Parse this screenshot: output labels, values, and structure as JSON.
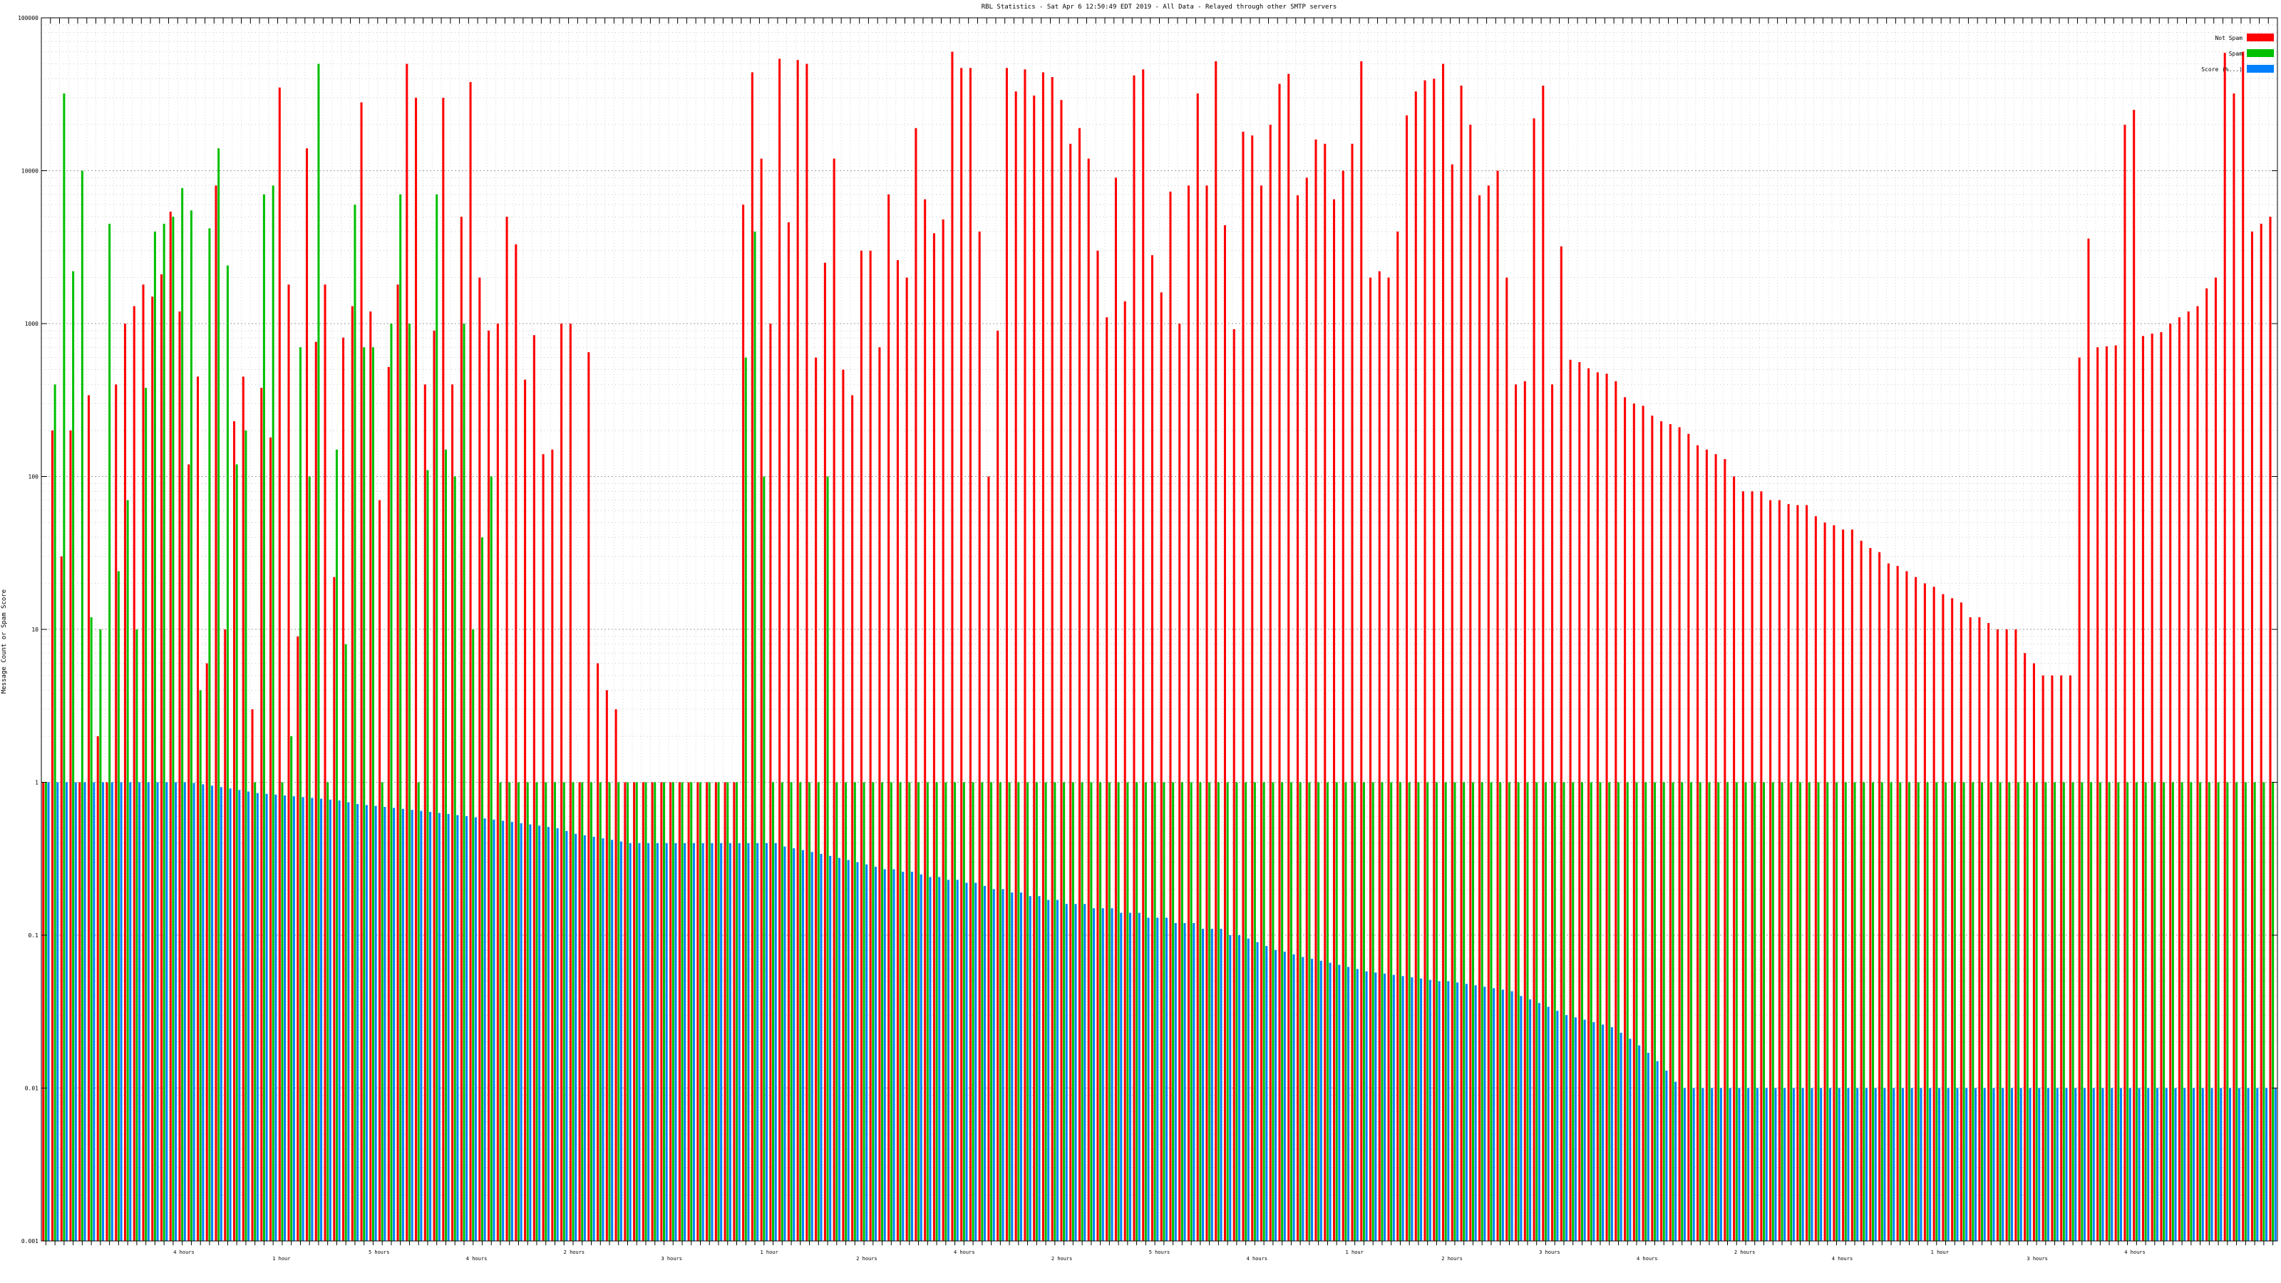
{
  "chart_data": {
    "type": "bar",
    "title": "RBL Statistics - Sat Apr  6 12:50:49 EDT 2019 - All Data - Relayed through other SMTP servers",
    "xlabel": "",
    "ylabel": "Message Count or Spam Score",
    "y_scale": "log",
    "ylim": [
      0.001,
      100000
    ],
    "y_ticks": [
      0.001,
      0.01,
      0.1,
      1,
      10,
      100,
      1000,
      10000,
      100000
    ],
    "y_tick_labels": [
      "0.001",
      "0.01",
      "0.1",
      "1",
      "10",
      "100",
      "1000",
      "10000",
      "100000"
    ],
    "grid": true,
    "legend_position": "top-right",
    "time_labels": [
      "4 hours",
      "1 hour",
      "5 hours",
      "4 hours",
      "2 hours",
      "3 hours",
      "1 hour",
      "2 hours",
      "4 hours",
      "2 hours",
      "5 hours",
      "4 hours",
      "1 hour",
      "2 hours",
      "3 hours",
      "4 hours",
      "2 hours",
      "4 hours",
      "1 hour",
      "3 hours",
      "4 hours"
    ],
    "series": [
      {
        "name": "Not Spam",
        "color": "#ff0000",
        "values": [
          1,
          200,
          30,
          200,
          1,
          340,
          2,
          1,
          400,
          1000,
          1300,
          1800,
          1500,
          2100,
          5400,
          1200,
          120,
          450,
          6,
          8000,
          10,
          230,
          450,
          3,
          380,
          180,
          35000,
          1800,
          9,
          14000,
          760,
          1800,
          22,
          810,
          1300,
          28000,
          1200,
          70,
          520,
          1800,
          50000,
          30000,
          400,
          900,
          30000,
          400,
          5000,
          38000,
          2000,
          900,
          1000,
          5000,
          3300,
          430,
          840,
          140,
          150,
          1000,
          1000,
          1,
          650,
          6,
          4,
          3,
          1,
          1,
          1,
          1,
          1,
          1,
          1,
          1,
          1,
          1,
          1,
          1,
          1,
          6000,
          44000,
          12000,
          1000,
          54000,
          4600,
          53000,
          50000,
          600,
          2500,
          12000,
          500,
          340,
          3000,
          3000,
          700,
          7000,
          2600,
          2000,
          19000,
          6500,
          3900,
          4800,
          60000,
          47000,
          47000,
          4000,
          100,
          900,
          47000,
          33000,
          46000,
          31000,
          44000,
          41000,
          29000,
          15000,
          19000,
          12000,
          3000,
          1100,
          9000,
          1400,
          42000,
          46000,
          2800,
          1600,
          7300,
          1000,
          8000,
          32000,
          8000,
          52000,
          4400,
          920,
          18000,
          17000,
          8000,
          20000,
          37000,
          43000,
          6900,
          9000,
          16000,
          15000,
          6500,
          10000,
          15000,
          52000,
          2000,
          2200,
          2000,
          4000,
          23000,
          33000,
          39000,
          40000,
          50000,
          11000,
          36000,
          20000,
          6900,
          8000,
          10000,
          2000,
          400,
          420,
          22000,
          36000,
          400,
          3200,
          580,
          560,
          510,
          480,
          470,
          420,
          330,
          300,
          290,
          250,
          230,
          220,
          210,
          190,
          160,
          150,
          140,
          130,
          100,
          80,
          80,
          80,
          70,
          70,
          66,
          65,
          65,
          55,
          50,
          48,
          45,
          45,
          38,
          34,
          32,
          27,
          26,
          24,
          22,
          20,
          19,
          17,
          16,
          15,
          12,
          12,
          11,
          10,
          10,
          10,
          7,
          6,
          5,
          5,
          5,
          5,
          600,
          3600,
          700,
          710,
          720,
          20000,
          25000,
          830,
          860,
          880,
          1000,
          1100,
          1200,
          1300,
          1700,
          2000,
          59000,
          32000,
          60000,
          4000,
          4500,
          5000
        ]
      },
      {
        "name": "Spam",
        "color": "#00c000",
        "values": [
          1,
          400,
          32000,
          2200,
          10000,
          12,
          10,
          4500,
          24,
          70,
          10,
          380,
          4000,
          4500,
          5000,
          7700,
          5500,
          4,
          4200,
          14000,
          2400,
          120,
          200,
          1,
          7000,
          8000,
          1,
          2,
          700,
          100,
          50000,
          1,
          150,
          8,
          6000,
          700,
          700,
          1,
          1000,
          7000,
          1000,
          1,
          110,
          7000,
          150,
          100,
          1000,
          10,
          40,
          100,
          1,
          1,
          1,
          1,
          1,
          1,
          1,
          1,
          1,
          1,
          1,
          1,
          1,
          1,
          1,
          1,
          1,
          1,
          1,
          1,
          1,
          1,
          1,
          1,
          1,
          1,
          1,
          600,
          4000,
          100,
          1,
          1,
          1,
          1,
          1,
          1,
          100,
          1,
          1,
          1,
          1,
          1,
          1,
          1,
          1,
          1,
          1,
          1,
          1,
          1,
          1,
          1,
          1,
          1,
          1,
          1,
          1,
          1,
          1,
          1,
          1,
          1,
          1,
          1,
          1,
          1,
          1,
          1,
          1,
          1,
          1,
          1,
          1,
          1,
          1,
          1,
          1,
          1,
          1,
          1,
          1,
          1,
          1,
          1,
          1,
          1,
          1,
          1,
          1,
          1,
          1,
          1,
          1,
          1,
          1,
          1,
          1,
          1,
          1,
          1,
          1,
          1,
          1,
          1,
          1,
          1,
          1,
          1,
          1,
          1,
          1,
          1,
          1,
          1,
          1,
          1,
          1,
          1,
          1,
          1,
          1,
          1,
          1,
          1,
          1,
          1,
          1,
          1,
          1,
          1,
          1,
          1,
          1,
          1,
          1,
          1,
          1,
          1,
          1,
          1,
          1,
          1,
          1,
          1,
          1,
          1,
          1,
          1,
          1,
          1,
          1,
          1,
          1,
          1,
          1,
          1,
          1,
          1,
          1,
          1,
          1,
          1,
          1,
          1,
          1,
          1,
          1,
          1,
          1,
          1,
          1,
          1,
          1,
          1,
          1,
          1,
          1,
          1,
          1,
          1,
          1,
          1,
          1,
          1,
          1,
          1,
          1,
          1,
          1,
          1,
          1,
          1,
          1,
          1,
          1,
          1,
          1,
          1,
          1,
          1,
          1,
          1,
          1,
          1,
          1,
          1,
          1,
          1,
          1,
          1,
          1,
          1,
          1,
          1,
          1,
          1,
          1,
          1,
          1,
          1,
          1,
          1,
          1,
          1,
          1,
          1,
          1,
          1
        ]
      },
      {
        "name": "Score (%...)",
        "color": "#0080ff",
        "values": [
          1,
          1,
          1,
          1,
          1,
          1,
          1,
          1,
          1,
          1,
          1,
          1,
          1,
          1,
          1,
          1,
          0.99,
          0.97,
          0.95,
          0.93,
          0.91,
          0.89,
          0.87,
          0.85,
          0.84,
          0.83,
          0.82,
          0.81,
          0.8,
          0.79,
          0.78,
          0.77,
          0.76,
          0.74,
          0.72,
          0.71,
          0.7,
          0.69,
          0.68,
          0.67,
          0.66,
          0.65,
          0.64,
          0.63,
          0.62,
          0.61,
          0.6,
          0.59,
          0.58,
          0.57,
          0.56,
          0.55,
          0.54,
          0.53,
          0.52,
          0.51,
          0.5,
          0.48,
          0.46,
          0.45,
          0.44,
          0.43,
          0.42,
          0.41,
          0.4,
          0.4,
          0.4,
          0.4,
          0.4,
          0.4,
          0.4,
          0.4,
          0.4,
          0.4,
          0.4,
          0.4,
          0.4,
          0.4,
          0.4,
          0.4,
          0.4,
          0.38,
          0.37,
          0.36,
          0.35,
          0.34,
          0.33,
          0.32,
          0.31,
          0.3,
          0.29,
          0.28,
          0.27,
          0.27,
          0.26,
          0.26,
          0.25,
          0.24,
          0.24,
          0.23,
          0.23,
          0.22,
          0.22,
          0.21,
          0.2,
          0.2,
          0.19,
          0.19,
          0.18,
          0.18,
          0.17,
          0.17,
          0.16,
          0.16,
          0.16,
          0.15,
          0.15,
          0.15,
          0.14,
          0.14,
          0.14,
          0.13,
          0.13,
          0.13,
          0.12,
          0.12,
          0.12,
          0.11,
          0.11,
          0.11,
          0.1,
          0.1,
          0.095,
          0.09,
          0.085,
          0.08,
          0.078,
          0.075,
          0.072,
          0.07,
          0.068,
          0.066,
          0.064,
          0.062,
          0.06,
          0.058,
          0.057,
          0.056,
          0.055,
          0.054,
          0.053,
          0.052,
          0.051,
          0.05,
          0.05,
          0.049,
          0.048,
          0.047,
          0.046,
          0.045,
          0.044,
          0.043,
          0.04,
          0.038,
          0.036,
          0.034,
          0.032,
          0.03,
          0.029,
          0.028,
          0.027,
          0.026,
          0.025,
          0.023,
          0.021,
          0.019,
          0.017,
          0.015,
          0.013,
          0.011,
          0.01,
          0.01,
          0.01,
          0.01,
          0.01,
          0.01,
          0.01,
          0.01,
          0.01,
          0.01,
          0.01,
          0.01,
          0.01,
          0.01,
          0.01,
          0.01,
          0.01,
          0.01,
          0.01,
          0.01,
          0.01,
          0.01,
          0.01,
          0.01,
          0.01,
          0.01,
          0.01,
          0.01,
          0.01,
          0.01,
          0.01,
          0.01,
          0.01,
          0.01,
          0.01,
          0.01,
          0.01,
          0.01,
          0.01,
          0.01,
          0.01,
          0.01,
          0.01,
          0.01,
          0.01,
          0.01,
          0.01,
          0.01,
          0.01,
          0.01,
          0.01,
          0.01,
          0.01,
          0.01,
          0.01,
          0.01,
          0.01,
          0.01,
          0.01,
          0.01,
          0.01,
          0.01,
          0.01,
          0.01,
          0.01,
          0.01,
          0.01,
          0.01,
          0.01,
          0.01,
          0.01,
          0.01,
          0.01,
          0.01,
          0.01,
          0.01,
          0.009,
          0.008,
          0.008,
          0.007,
          0.007,
          0.006,
          0.006,
          0.005,
          0.005,
          0.004,
          0.004,
          0.0035,
          0.003,
          0.0025,
          0.002,
          0.0015,
          0.001
        ]
      }
    ]
  }
}
